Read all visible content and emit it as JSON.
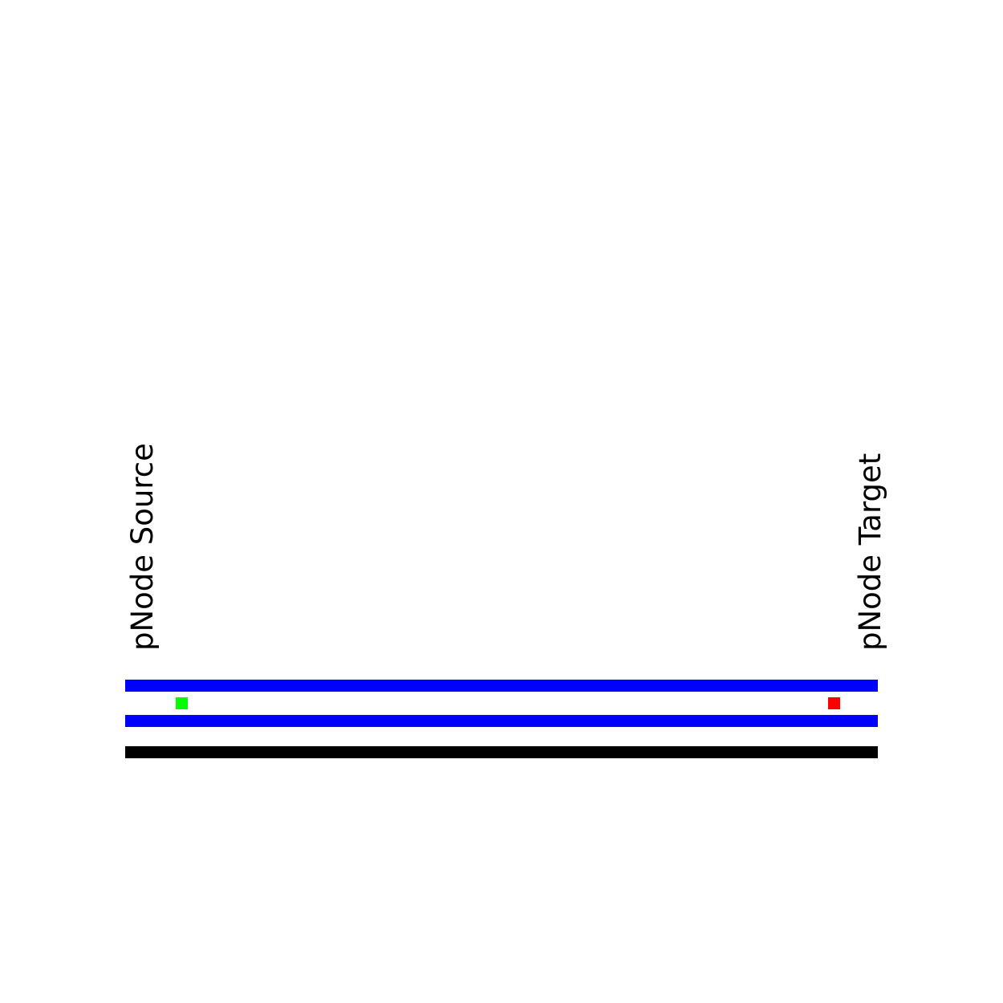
{
  "nodes": {
    "source": {
      "label": "pNode Source",
      "color": "#00ff00"
    },
    "target": {
      "label": "pNode Target",
      "color": "#ff0000"
    }
  },
  "colors": {
    "track": "#0000ff",
    "ground": "#000000",
    "text": "#000000",
    "background": "#ffffff"
  }
}
